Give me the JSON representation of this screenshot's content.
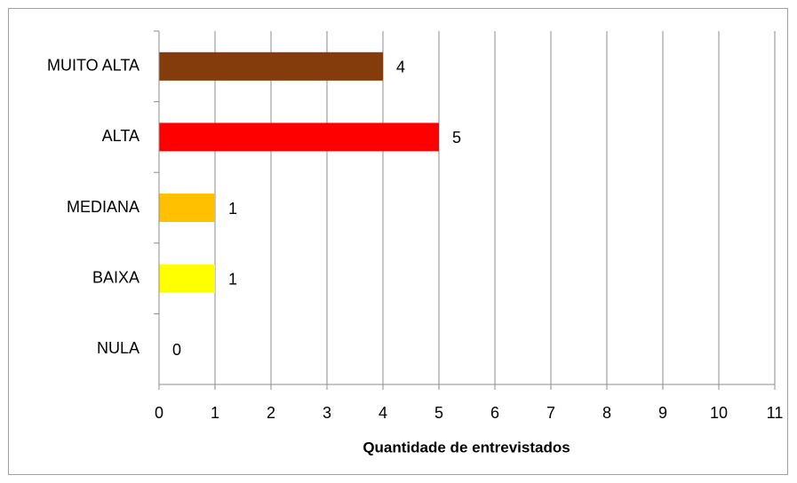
{
  "chart_data": {
    "type": "barh",
    "categories": [
      "MUITO ALTA",
      "ALTA",
      "MEDIANA",
      "BAIXA",
      "NULA"
    ],
    "values": [
      4,
      5,
      1,
      1,
      0
    ],
    "colors": [
      "#843c0c",
      "#ff0000",
      "#ffc000",
      "#ffff00",
      null
    ],
    "xlabel": "Quantidade de entrevistados",
    "xlim": [
      0,
      11
    ],
    "xticks": [
      0,
      1,
      2,
      3,
      4,
      5,
      6,
      7,
      8,
      9,
      10,
      11
    ],
    "grid": true
  }
}
